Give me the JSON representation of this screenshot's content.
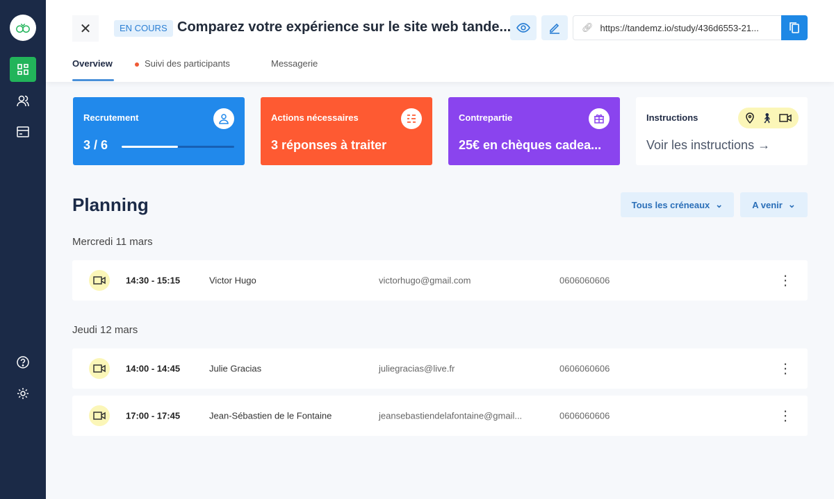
{
  "sidebar": {
    "items": [
      {
        "icon": "dashboard-icon",
        "active": true
      },
      {
        "icon": "users-icon"
      },
      {
        "icon": "card-icon"
      },
      {
        "icon": "help-icon"
      },
      {
        "icon": "settings-icon"
      }
    ]
  },
  "header": {
    "status": "EN COURS",
    "title": "Comparez votre expérience sur le site web tande...",
    "url": "https://tandemz.io/study/436d6553-21...",
    "tabs": [
      {
        "label": "Overview",
        "active": true
      },
      {
        "label": "Suivi des participants",
        "dot_color": "#ef5a35"
      },
      {
        "label": "Messagerie"
      }
    ]
  },
  "cards": [
    {
      "label": "Recrutement",
      "value": "3 / 6",
      "progress": 0.5,
      "color": "#2189eb",
      "icon": "user-icon"
    },
    {
      "label": "Actions nécessaires",
      "value": "3 réponses à traiter",
      "color": "#fe5a32",
      "icon": "list-icon"
    },
    {
      "label": "Contrepartie",
      "value": "25€ en chèques cadea...",
      "color": "#8a44ee",
      "icon": "gift-icon"
    },
    {
      "label": "Instructions",
      "value": "Voir les instructions →",
      "icons": [
        "location-icon",
        "walk-icon",
        "video-icon"
      ]
    }
  ],
  "planning": {
    "title": "Planning",
    "filters": [
      "Tous les créneaux",
      "A venir"
    ],
    "days": [
      {
        "date": "Mercredi 11 mars",
        "slots": [
          {
            "time": "14:30 - 15:15",
            "name": "Victor Hugo",
            "email": "victorhugo@gmail.com",
            "phone": "0606060606"
          }
        ]
      },
      {
        "date": "Jeudi 12 mars",
        "slots": [
          {
            "time": "14:00 - 14:45",
            "name": "Julie Gracias",
            "email": "juliegracias@live.fr",
            "phone": "0606060606"
          },
          {
            "time": "17:00 - 17:45",
            "name": "Jean-Sébastien de le Fontaine",
            "email": "jeansebastiendelafontaine@gmail...",
            "phone": "0606060606"
          }
        ]
      }
    ]
  }
}
